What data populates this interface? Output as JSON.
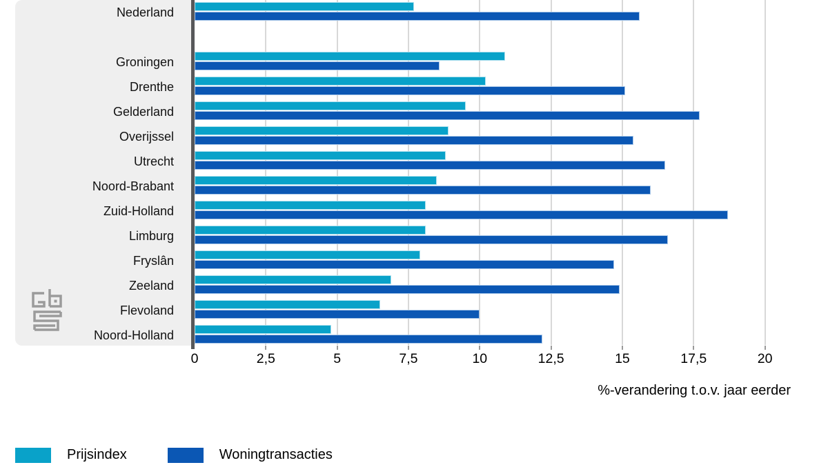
{
  "chart_data": {
    "type": "bar",
    "orientation": "horizontal",
    "title": "",
    "xlabel": "%-verandering t.o.v. jaar eerder",
    "categories": [
      "Nederland",
      "Groningen",
      "Drenthe",
      "Gelderland",
      "Overijssel",
      "Utrecht",
      "Noord-Brabant",
      "Zuid-Holland",
      "Limburg",
      "Fryslân",
      "Zeeland",
      "Flevoland",
      "Noord-Holland"
    ],
    "series": [
      {
        "name": "Prijsindex",
        "color": "#09a2c9",
        "values": [
          7.7,
          10.9,
          10.2,
          9.5,
          8.9,
          8.8,
          8.5,
          8.1,
          8.1,
          7.9,
          6.9,
          6.5,
          4.8
        ]
      },
      {
        "name": "Woningtransacties",
        "color": "#0b57b4",
        "values": [
          15.6,
          8.6,
          15.1,
          17.7,
          15.4,
          16.5,
          16.0,
          18.7,
          16.6,
          14.7,
          14.9,
          10.0,
          12.2
        ]
      }
    ],
    "xlim": [
      0,
      20
    ],
    "xticks": [
      0,
      2.5,
      5,
      7.5,
      10,
      12.5,
      15,
      17.5,
      20
    ],
    "xtick_labels": [
      "0",
      "2,5",
      "5",
      "7,5",
      "10",
      "12,5",
      "15",
      "17,5",
      "20"
    ],
    "grid": "vertical-gridlines-on",
    "group_gap_after_first_category": true,
    "legend_position": "bottom-left"
  },
  "legend": {
    "items": [
      {
        "label": "Prijsindex",
        "color": "#09a2c9"
      },
      {
        "label": "Woningtransacties",
        "color": "#0b57b4"
      }
    ]
  },
  "branding": {
    "logo": "cbs-logo"
  },
  "colors": {
    "prijsindex": "#09a2c9",
    "woningtransacties": "#0b57b4",
    "sidebar_bg": "#efefef",
    "axis_line": "#57585a",
    "gridline": "#d8d8d8",
    "logo_gray": "#9b9b9b"
  }
}
